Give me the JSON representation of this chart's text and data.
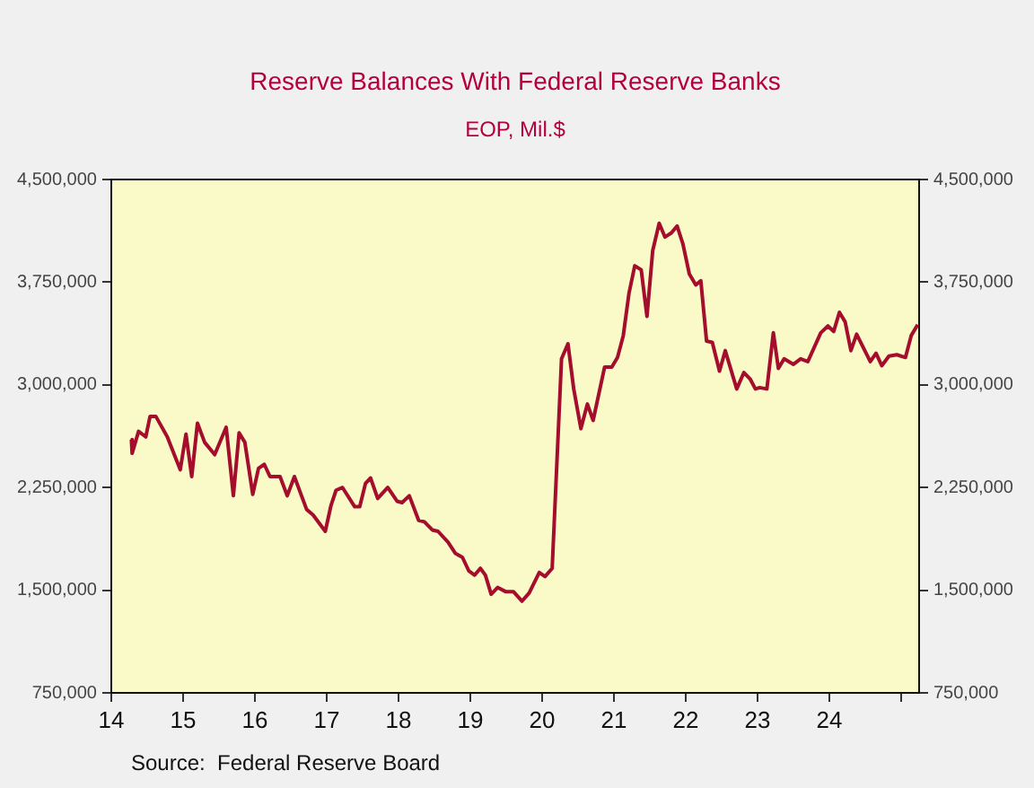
{
  "chart_data": {
    "type": "line",
    "title": "Reserve Balances With Federal Reserve Banks",
    "subtitle": "EOP, Mil.$",
    "annotations": [
      "Source:  Federal Reserve Board"
    ],
    "series": [
      {
        "color": "#a50d2d",
        "x": [
          14.28,
          14.29,
          14.38,
          14.48,
          14.54,
          14.62,
          14.78,
          14.96,
          15.04,
          15.12,
          15.2,
          15.3,
          15.44,
          15.6,
          15.7,
          15.78,
          15.86,
          15.97,
          16.05,
          16.13,
          16.21,
          16.35,
          16.45,
          16.55,
          16.72,
          16.81,
          16.98,
          17.06,
          17.13,
          17.22,
          17.39,
          17.46,
          17.54,
          17.61,
          17.71,
          17.85,
          17.98,
          18.05,
          18.15,
          18.28,
          18.36,
          18.47,
          18.55,
          18.69,
          18.79,
          18.89,
          18.98,
          19.06,
          19.14,
          19.21,
          19.29,
          19.38,
          19.49,
          19.6,
          19.72,
          19.82,
          19.96,
          20.04,
          20.14,
          20.27,
          20.36,
          20.44,
          20.54,
          20.63,
          20.71,
          20.87,
          20.97,
          21.05,
          21.13,
          21.21,
          21.29,
          21.38,
          21.46,
          21.54,
          21.63,
          21.71,
          21.8,
          21.88,
          21.96,
          22.05,
          22.14,
          22.21,
          22.29,
          22.37,
          22.47,
          22.55,
          22.71,
          22.81,
          22.9,
          22.97,
          23.03,
          23.13,
          23.22,
          23.29,
          23.37,
          23.5,
          23.6,
          23.7,
          23.88,
          23.98,
          24.06,
          24.14,
          24.22,
          24.3,
          24.38,
          24.57,
          24.65,
          24.73,
          24.83,
          24.94,
          25.06,
          25.14,
          25.23
        ],
        "values": [
          2600000,
          2500000,
          2660000,
          2620000,
          2770000,
          2770000,
          2620000,
          2380000,
          2640000,
          2330000,
          2720000,
          2580000,
          2490000,
          2690000,
          2190000,
          2650000,
          2580000,
          2200000,
          2390000,
          2420000,
          2330000,
          2330000,
          2190000,
          2330000,
          2090000,
          2050000,
          1930000,
          2120000,
          2230000,
          2250000,
          2110000,
          2110000,
          2280000,
          2320000,
          2170000,
          2250000,
          2150000,
          2140000,
          2190000,
          2010000,
          2000000,
          1940000,
          1930000,
          1850000,
          1770000,
          1740000,
          1640000,
          1610000,
          1660000,
          1610000,
          1470000,
          1520000,
          1490000,
          1490000,
          1420000,
          1480000,
          1630000,
          1600000,
          1660000,
          3190000,
          3300000,
          2970000,
          2680000,
          2860000,
          2740000,
          3130000,
          3130000,
          3200000,
          3360000,
          3670000,
          3870000,
          3840000,
          3500000,
          3980000,
          4180000,
          4080000,
          4110000,
          4160000,
          4030000,
          3810000,
          3730000,
          3760000,
          3320000,
          3310000,
          3100000,
          3250000,
          2970000,
          3090000,
          3040000,
          2970000,
          2980000,
          2970000,
          3380000,
          3120000,
          3190000,
          3150000,
          3190000,
          3170000,
          3380000,
          3430000,
          3390000,
          3530000,
          3460000,
          3250000,
          3370000,
          3170000,
          3230000,
          3140000,
          3210000,
          3220000,
          3200000,
          3360000,
          3440000
        ]
      }
    ],
    "xlim": [
      14,
      25.25
    ],
    "xticks": [
      14,
      15,
      16,
      17,
      18,
      19,
      20,
      21,
      22,
      23,
      24,
      {
        "value": 25,
        "label": null
      }
    ],
    "ylim": [
      750000,
      4500000
    ],
    "yticks": [
      {
        "value": 750000,
        "label": "750,000"
      },
      {
        "value": 1500000,
        "label": "1,500,000"
      },
      {
        "value": 2250000,
        "label": "2,250,000"
      },
      {
        "value": 3000000,
        "label": "3,000,000"
      },
      {
        "value": 3750000,
        "label": "3,750,000"
      },
      {
        "value": 4500000,
        "label": "4,500,000"
      }
    ],
    "y2lim": [
      750000,
      4500000
    ],
    "y2ticks": [
      {
        "value": 750000,
        "label": "750,000"
      },
      {
        "value": 1500000,
        "label": "1,500,000"
      },
      {
        "value": 2250000,
        "label": "2,250,000"
      },
      {
        "value": 3000000,
        "label": "3,000,000"
      },
      {
        "value": 3750000,
        "label": "3,750,000"
      },
      {
        "value": 4500000,
        "label": "4,500,000"
      }
    ],
    "grid": false,
    "legend": false,
    "marker": "none",
    "line_style": "solid"
  }
}
